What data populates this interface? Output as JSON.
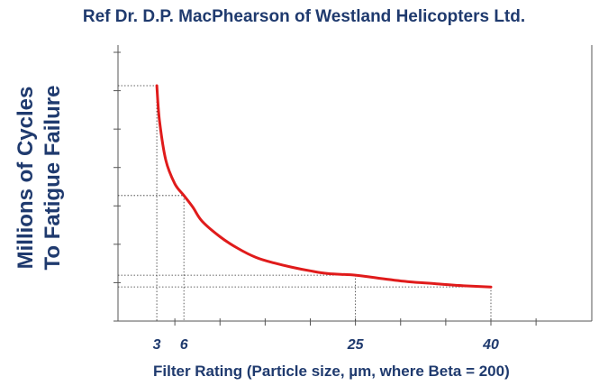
{
  "chart_data": {
    "type": "line",
    "title": "Ref Dr. D.P. MacPhearson of Westland Helicopters Ltd.",
    "xlabel": "Filter Rating  (Particle size, µm, where Beta = 200)",
    "ylabel_lines": [
      "Millions of Cycles",
      "To Fatigue Failure"
    ],
    "xlim": [
      0,
      50
    ],
    "ylim": [
      0,
      6
    ],
    "xticks": [
      3,
      6,
      25,
      40
    ],
    "xtick_labels": [
      "3",
      "6",
      "25",
      "40"
    ],
    "grid": false,
    "curve_color": "#e01b1b",
    "text_color": "#1f3a6e",
    "series": [
      {
        "x": [
          3,
          3.3,
          4,
          5,
          6,
          7,
          8,
          10,
          12,
          14,
          16,
          18,
          20,
          22,
          25,
          28,
          31,
          34,
          37,
          40
        ],
        "y": [
          6.0,
          5.1,
          4.1,
          3.5,
          3.2,
          2.9,
          2.55,
          2.15,
          1.85,
          1.62,
          1.48,
          1.37,
          1.28,
          1.21,
          1.17,
          1.08,
          1.0,
          0.95,
          0.9,
          0.87
        ]
      }
    ],
    "reference_lines": [
      {
        "x": 3,
        "y": 6.0
      },
      {
        "x": 6,
        "y": 3.2
      },
      {
        "x": 25,
        "y": 1.17
      },
      {
        "x": 40,
        "y": 0.87
      }
    ]
  }
}
